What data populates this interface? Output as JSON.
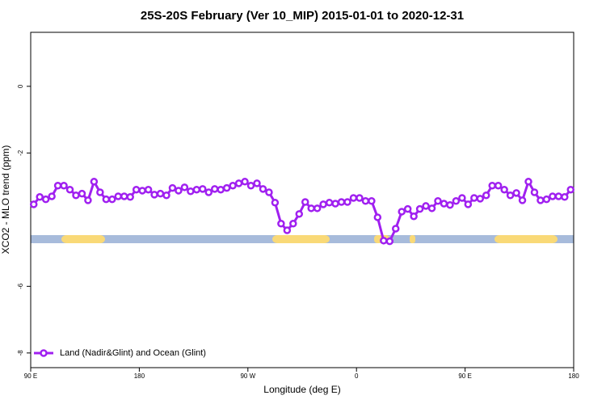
{
  "chart_data": {
    "type": "line",
    "title": "25S-20S February (Ver 10_MIP)   2015-01-01 to 2020-12-31",
    "x_label": "Longitude (deg E)",
    "y_label": "XCO2 - MLO trend (ppm)",
    "x": [
      92.5,
      97.5,
      102.5,
      107.5,
      112.5,
      117.5,
      122.5,
      127.5,
      132.5,
      137.5,
      142.5,
      147.5,
      152.5,
      157.5,
      162.5,
      167.5,
      172.5,
      177.5,
      182.5,
      187.5,
      192.5,
      197.5,
      202.5,
      207.5,
      212.5,
      217.5,
      222.5,
      227.5,
      232.5,
      237.5,
      242.5,
      247.5,
      252.5,
      257.5,
      262.5,
      267.5,
      272.5,
      277.5,
      282.5,
      287.5,
      292.5,
      297.5,
      302.5,
      307.5,
      312.5,
      317.5,
      322.5,
      327.5,
      332.5,
      337.5,
      342.5,
      347.5,
      352.5,
      357.5,
      362.5,
      367.5,
      372.5,
      377.5,
      382.5,
      387.5,
      392.5,
      397.5,
      402.5,
      407.5,
      412.5,
      417.5,
      422.5,
      427.5,
      432.5,
      437.5,
      442.5,
      447.5,
      452.5,
      457.5,
      462.5,
      467.5,
      472.5,
      477.5,
      482.5,
      487.5,
      492.5,
      497.5,
      502.5,
      507.5,
      512.5,
      517.5,
      522.5,
      527.5,
      532.5,
      537.5
    ],
    "series": [
      {
        "name": "Land (Nadir&Glint) and Ocean (Glint)",
        "color": "#a020f0",
        "values": [
          -3.54,
          -3.32,
          -3.39,
          -3.3,
          -2.98,
          -2.98,
          -3.1,
          -3.27,
          -3.22,
          -3.42,
          -2.86,
          -3.18,
          -3.39,
          -3.39,
          -3.3,
          -3.3,
          -3.32,
          -3.1,
          -3.13,
          -3.1,
          -3.25,
          -3.22,
          -3.27,
          -3.05,
          -3.13,
          -3.03,
          -3.15,
          -3.1,
          -3.08,
          -3.18,
          -3.08,
          -3.1,
          -3.05,
          -2.98,
          -2.91,
          -2.86,
          -2.98,
          -2.91,
          -3.08,
          -3.18,
          -3.49,
          -4.12,
          -4.32,
          -4.12,
          -3.83,
          -3.47,
          -3.66,
          -3.66,
          -3.54,
          -3.49,
          -3.52,
          -3.47,
          -3.47,
          -3.35,
          -3.35,
          -3.44,
          -3.44,
          -3.93,
          -4.63,
          -4.65,
          -4.27,
          -3.76,
          -3.68,
          -3.9,
          -3.68,
          -3.59,
          -3.66,
          -3.44,
          -3.52,
          -3.56,
          -3.44,
          -3.35,
          -3.54,
          -3.35,
          -3.37,
          -3.27,
          -2.98,
          -2.98,
          -3.1,
          -3.27,
          -3.2,
          -3.42,
          -2.86,
          -3.18,
          -3.42,
          -3.39,
          -3.3,
          -3.3,
          -3.32,
          -3.1
        ]
      }
    ],
    "xlim": [
      90,
      540
    ],
    "xticks": [
      {
        "value": 90,
        "label": "90 E"
      },
      {
        "value": 180,
        "label": "180"
      },
      {
        "value": 270,
        "label": "90 W"
      },
      {
        "value": 360,
        "label": "0"
      },
      {
        "value": 450,
        "label": "90 E"
      },
      {
        "value": 540,
        "label": "180"
      }
    ],
    "ylim": [
      -8.44,
      1.62
    ],
    "yticks": [
      0,
      -2,
      -6,
      -8
    ],
    "legend": "bottom-left"
  }
}
